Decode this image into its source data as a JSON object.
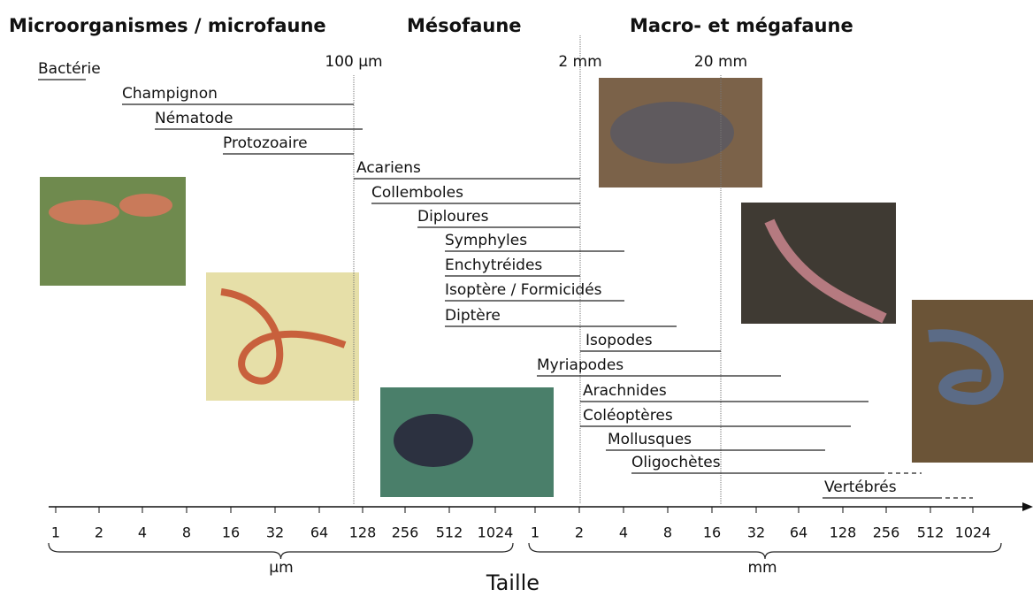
{
  "headings": [
    "Microorganismes / microfaune",
    "Mésofaune",
    "Macro- et mégafaune"
  ],
  "reference_lines": [
    "100 µm",
    "2 mm",
    "20 mm"
  ],
  "taxa": [
    "Bactérie",
    "Champignon",
    "Nématode",
    "Protozoaire",
    "Acariens",
    "Collemboles",
    "Diploures",
    "Symphyles",
    "Enchytréides",
    "Isoptère / Formicidés",
    "Diptère",
    "Isopodes",
    "Myriapodes",
    "Arachnides",
    "Coléoptères",
    "Mollusques",
    "Oligochètes",
    "Vertébrés"
  ],
  "axis": {
    "ticks_um": [
      1,
      2,
      4,
      8,
      16,
      32,
      64,
      128,
      256,
      512,
      1024
    ],
    "ticks_mm": [
      1,
      2,
      4,
      8,
      16,
      32,
      64,
      128,
      256,
      512,
      1024
    ],
    "unit_um": "µm",
    "unit_mm": "mm",
    "title": "Taille"
  }
}
